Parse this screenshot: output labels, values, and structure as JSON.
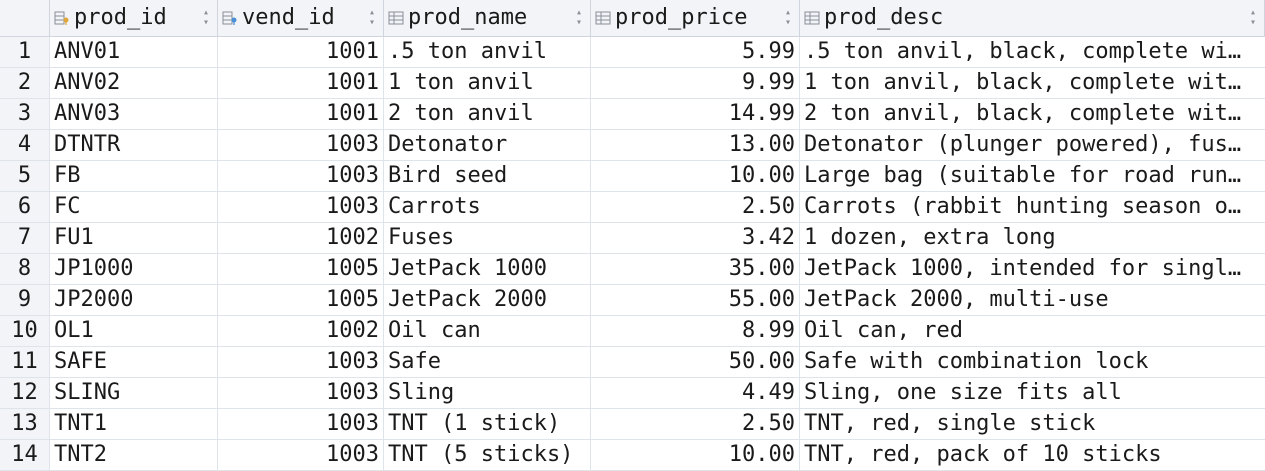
{
  "columns": [
    {
      "label": "prod_id",
      "icon": "primary-key-column-icon"
    },
    {
      "label": "vend_id",
      "icon": "foreign-key-column-icon"
    },
    {
      "label": "prod_name",
      "icon": "column-icon"
    },
    {
      "label": "prod_price",
      "icon": "column-icon"
    },
    {
      "label": "prod_desc",
      "icon": "column-icon"
    }
  ],
  "rows": [
    {
      "n": "1",
      "prod_id": "ANV01",
      "vend_id": "1001",
      "prod_name": ".5 ton anvil",
      "prod_price": "5.99",
      "prod_desc": ".5 ton anvil, black, complete wi…"
    },
    {
      "n": "2",
      "prod_id": "ANV02",
      "vend_id": "1001",
      "prod_name": "1 ton anvil",
      "prod_price": "9.99",
      "prod_desc": "1 ton anvil, black, complete wit…"
    },
    {
      "n": "3",
      "prod_id": "ANV03",
      "vend_id": "1001",
      "prod_name": "2 ton anvil",
      "prod_price": "14.99",
      "prod_desc": "2 ton anvil, black, complete wit…"
    },
    {
      "n": "4",
      "prod_id": "DTNTR",
      "vend_id": "1003",
      "prod_name": "Detonator",
      "prod_price": "13.00",
      "prod_desc": "Detonator (plunger powered), fus…"
    },
    {
      "n": "5",
      "prod_id": "FB",
      "vend_id": "1003",
      "prod_name": "Bird seed",
      "prod_price": "10.00",
      "prod_desc": "Large bag (suitable for road run…"
    },
    {
      "n": "6",
      "prod_id": "FC",
      "vend_id": "1003",
      "prod_name": "Carrots",
      "prod_price": "2.50",
      "prod_desc": "Carrots (rabbit hunting season o…"
    },
    {
      "n": "7",
      "prod_id": "FU1",
      "vend_id": "1002",
      "prod_name": "Fuses",
      "prod_price": "3.42",
      "prod_desc": "1 dozen, extra long"
    },
    {
      "n": "8",
      "prod_id": "JP1000",
      "vend_id": "1005",
      "prod_name": "JetPack 1000",
      "prod_price": "35.00",
      "prod_desc": "JetPack 1000, intended for singl…"
    },
    {
      "n": "9",
      "prod_id": "JP2000",
      "vend_id": "1005",
      "prod_name": "JetPack 2000",
      "prod_price": "55.00",
      "prod_desc": "JetPack 2000, multi-use"
    },
    {
      "n": "10",
      "prod_id": "OL1",
      "vend_id": "1002",
      "prod_name": "Oil can",
      "prod_price": "8.99",
      "prod_desc": "Oil can, red"
    },
    {
      "n": "11",
      "prod_id": "SAFE",
      "vend_id": "1003",
      "prod_name": "Safe",
      "prod_price": "50.00",
      "prod_desc": "Safe with combination lock"
    },
    {
      "n": "12",
      "prod_id": "SLING",
      "vend_id": "1003",
      "prod_name": "Sling",
      "prod_price": "4.49",
      "prod_desc": "Sling, one size fits all"
    },
    {
      "n": "13",
      "prod_id": "TNT1",
      "vend_id": "1003",
      "prod_name": "TNT (1 stick)",
      "prod_price": "2.50",
      "prod_desc": "TNT, red, single stick"
    },
    {
      "n": "14",
      "prod_id": "TNT2",
      "vend_id": "1003",
      "prod_name": "TNT (5 sticks)",
      "prod_price": "10.00",
      "prod_desc": "TNT, red, pack of 10 sticks"
    }
  ]
}
